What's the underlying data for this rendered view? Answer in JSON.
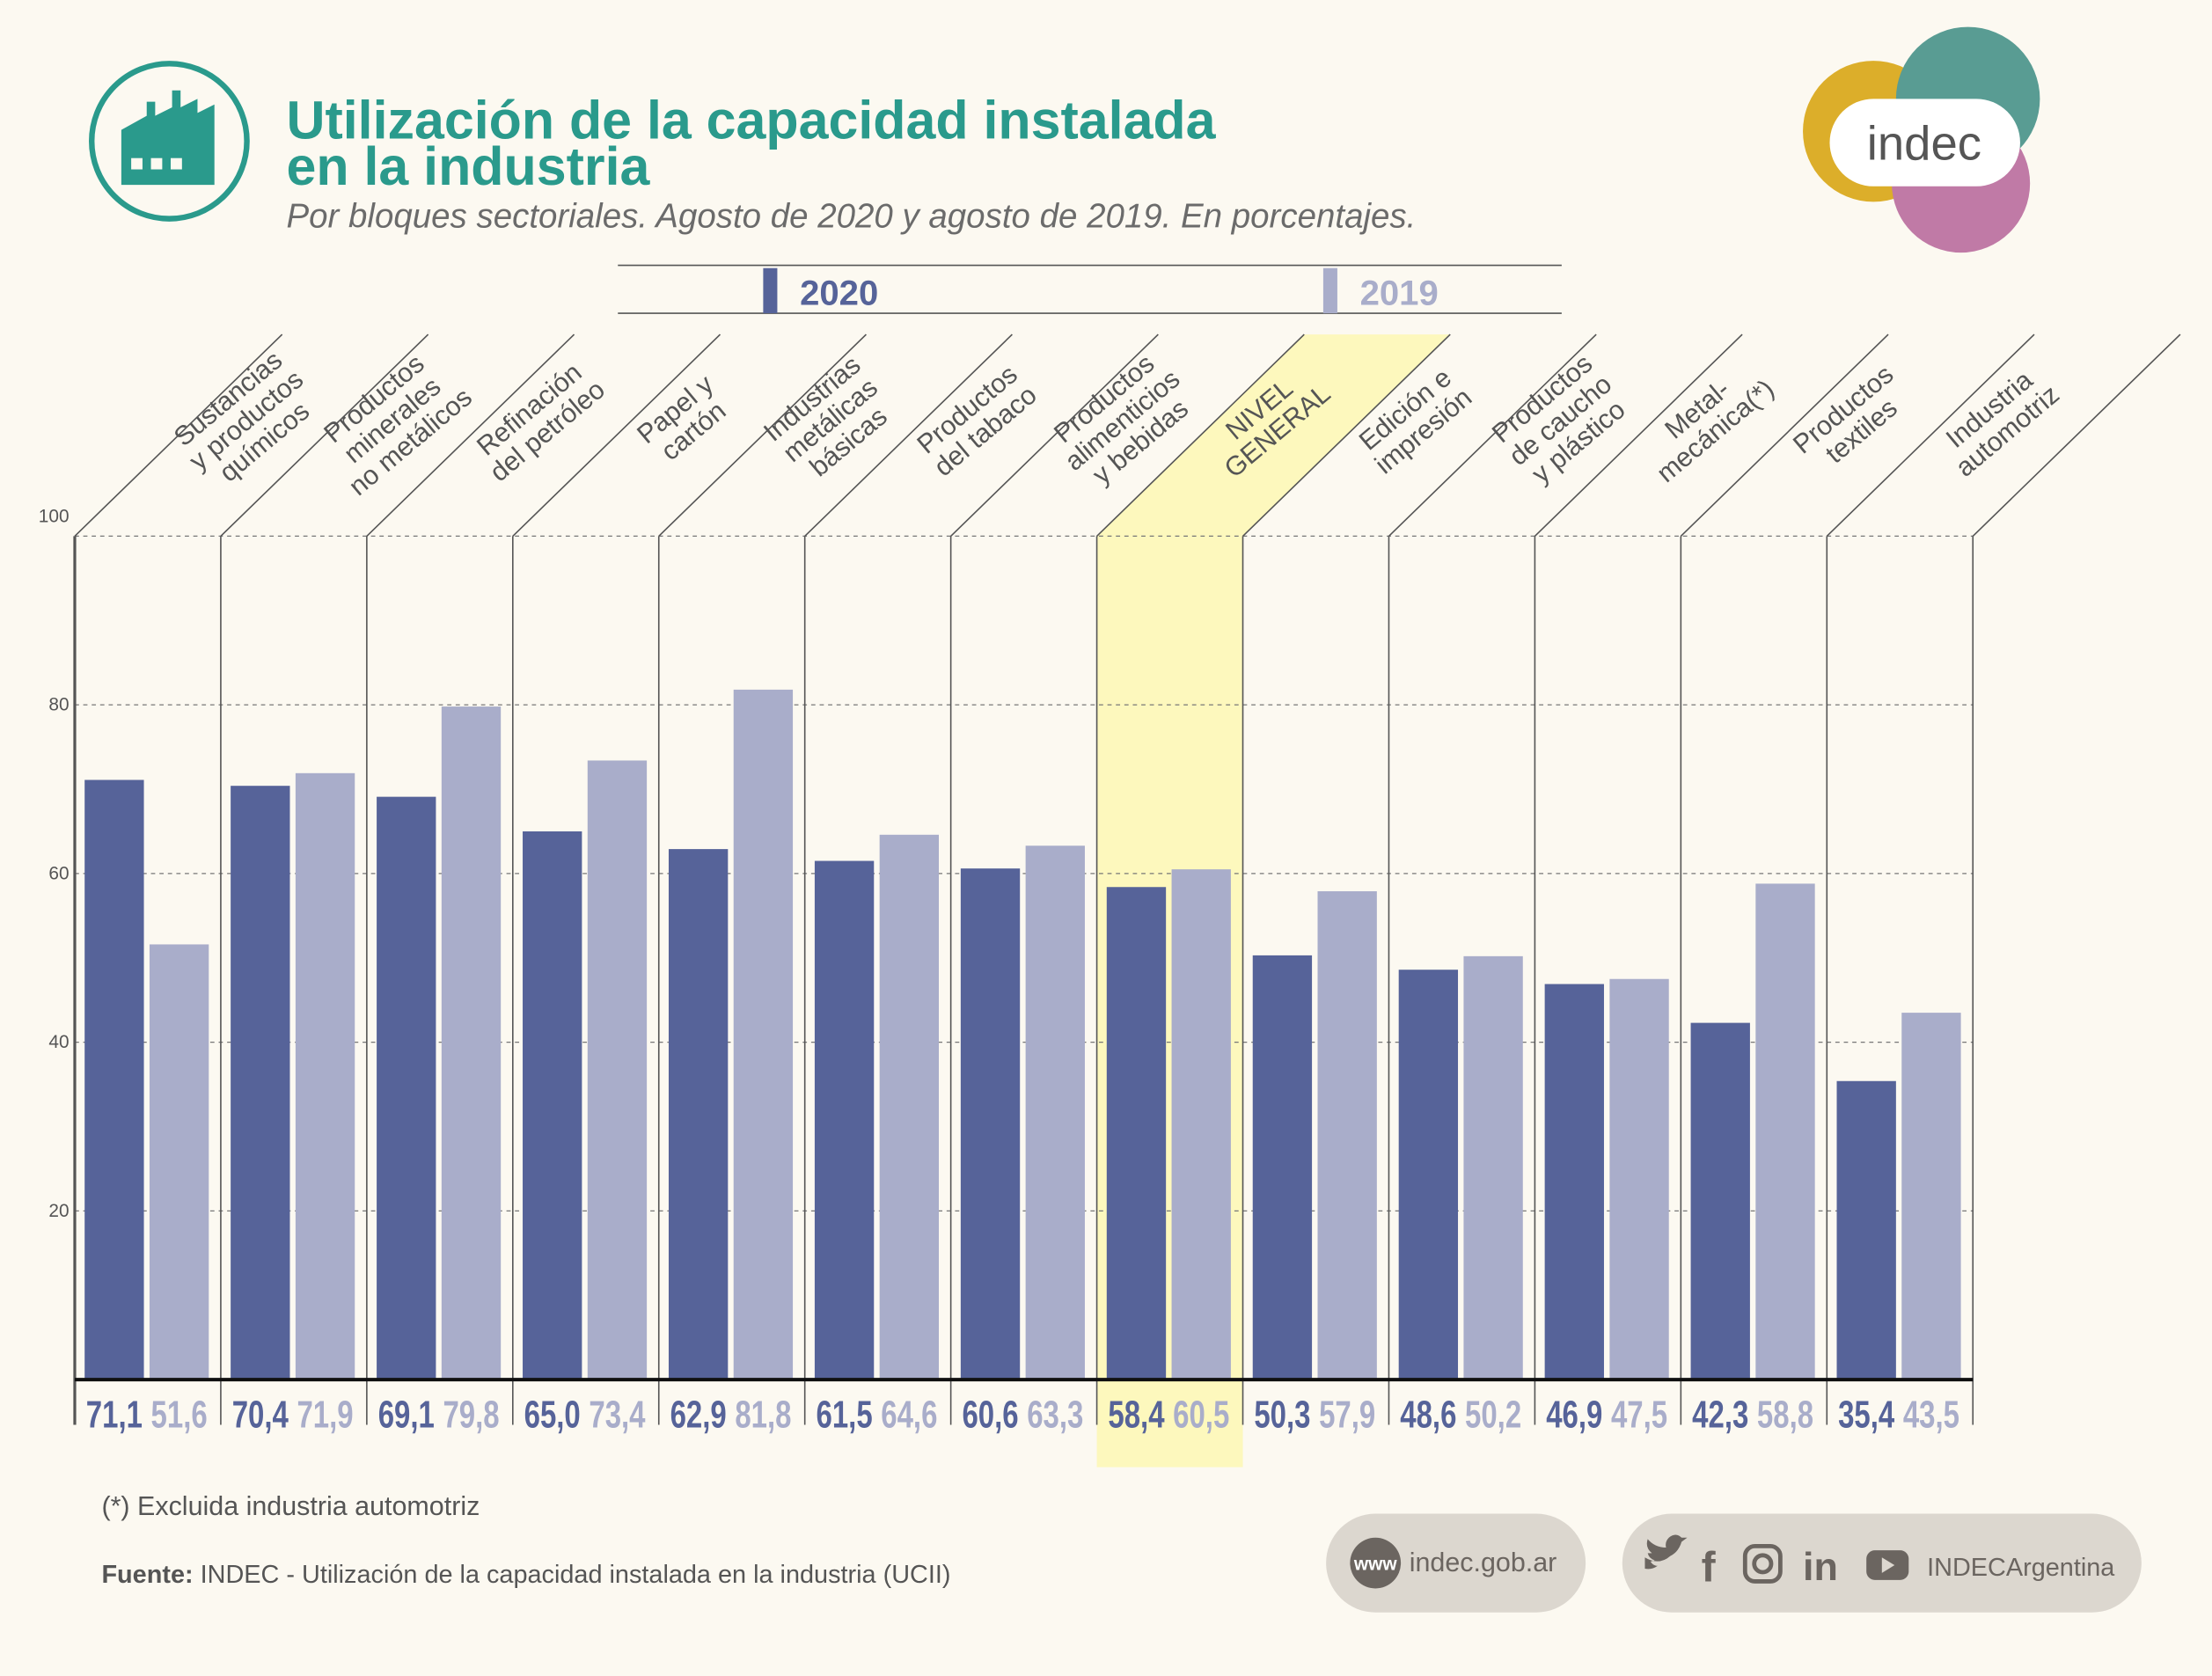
{
  "chart_data": {
    "type": "bar",
    "title": [
      "Utilización de la capacidad instalada",
      "en la industria"
    ],
    "subtitle": "Por bloques sectoriales. Agosto de 2020 y agosto de 2019. En porcentajes.",
    "categories": [
      [
        "Sustancias",
        "y productos",
        "químicos"
      ],
      [
        "Productos",
        "minerales",
        "no metálicos"
      ],
      [
        "Refinación",
        "del petróleo"
      ],
      [
        "Papel y",
        "cartón"
      ],
      [
        "Industrias",
        "metálicas",
        "básicas"
      ],
      [
        "Productos",
        "del tabaco"
      ],
      [
        "Productos",
        "alimenticios",
        "y bebidas"
      ],
      [
        "NIVEL",
        "GENERAL"
      ],
      [
        "Edición e",
        "impresión"
      ],
      [
        "Productos",
        "de caucho",
        "y plástico"
      ],
      [
        "Metal-",
        "mecánica(*)"
      ],
      [
        "Productos",
        "textiles"
      ],
      [
        "Industria",
        "automotriz"
      ]
    ],
    "series": [
      {
        "name": "2020",
        "color": "#566399",
        "values": [
          71.1,
          70.4,
          69.1,
          65.0,
          62.9,
          61.5,
          60.6,
          58.4,
          50.3,
          48.6,
          46.9,
          42.3,
          35.4
        ],
        "value_labels": [
          "71,1",
          "70,4",
          "69,1",
          "65,0",
          "62,9",
          "61,5",
          "60,6",
          "58,4",
          "50,3",
          "48,6",
          "46,9",
          "42,3",
          "35,4"
        ]
      },
      {
        "name": "2019",
        "color": "#a9adca",
        "values": [
          51.6,
          71.9,
          79.8,
          73.4,
          81.8,
          64.6,
          63.3,
          60.5,
          57.9,
          50.2,
          47.5,
          58.8,
          43.5
        ],
        "value_labels": [
          "51,6",
          "71,9",
          "79,8",
          "73,4",
          "81,8",
          "64,6",
          "63,3",
          "60,5",
          "57,9",
          "50,2",
          "47,5",
          "58,8",
          "43,5"
        ]
      }
    ],
    "ylim": [
      0,
      100
    ],
    "yticks": [
      20,
      40,
      60,
      80,
      100
    ],
    "grid": true,
    "highlight_category": 7,
    "highlight_color": "#fdf8bd",
    "footnote": "(*) Excluida industria automotriz",
    "source_label": "Fuente:",
    "source": "INDEC - Utilización de la capacidad instalada en la industria (UCII)"
  },
  "logo": "indec",
  "footer": {
    "www": "www",
    "website": "indec.gob.ar",
    "social": "INDECArgentina"
  }
}
